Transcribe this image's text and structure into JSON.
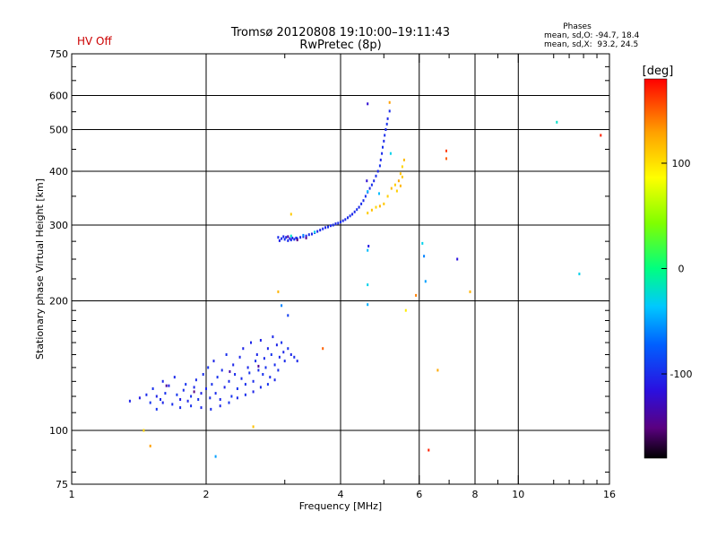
{
  "chart_data": {
    "type": "scatter",
    "title": "Tromsø 20120808 19:10:00–19:11:43",
    "subtitle": "RwPretec (8p)",
    "status_label": "HV Off",
    "status_color": "#cc0000",
    "stats": {
      "heading": "Phases",
      "line_o": "mean, sd,O: -94.7, 18.4",
      "line_x": "mean, sd,X:  93.2, 24.5"
    },
    "xlabel": "Frequency [MHz]",
    "ylabel": "Stationary phase Virtual Height [km]",
    "x_scale": "log",
    "y_scale": "log",
    "xlim": [
      1,
      16
    ],
    "ylim": [
      75,
      750
    ],
    "x_major_ticks": [
      1,
      2,
      4,
      6,
      8,
      10,
      16
    ],
    "x_major_labels": [
      "1",
      "2",
      "4",
      "6",
      "8",
      "10",
      "16"
    ],
    "x_minor_ticks": [
      3,
      5,
      7,
      9,
      12,
      13,
      14,
      15
    ],
    "y_major_ticks": [
      75,
      100,
      200,
      300,
      400,
      500,
      600,
      750
    ],
    "y_major_labels": [
      "75",
      "100",
      "200",
      "300",
      "400",
      "500",
      "600",
      "750"
    ],
    "y_minor_ticks": [
      80,
      90,
      110,
      120,
      130,
      140,
      150,
      160,
      170,
      180,
      190,
      225,
      250,
      275,
      350,
      450,
      550,
      650,
      700
    ],
    "grid_x": [
      2,
      4,
      6,
      8,
      10
    ],
    "grid_y": [
      100,
      200,
      300,
      400,
      500,
      600
    ],
    "colorbar": {
      "label": "[deg]",
      "min": -180,
      "max": 180,
      "ticks": [
        100,
        0,
        -100
      ],
      "tick_labels": [
        "100",
        "0",
        "-100"
      ]
    },
    "points": [
      [
        1.35,
        117,
        -105
      ],
      [
        1.42,
        119,
        -110
      ],
      [
        1.47,
        121,
        -100
      ],
      [
        1.5,
        116,
        -95
      ],
      [
        1.52,
        125,
        -98
      ],
      [
        1.55,
        120,
        -105
      ],
      [
        1.58,
        118,
        -100
      ],
      [
        1.6,
        130,
        -102
      ],
      [
        1.62,
        122,
        -97
      ],
      [
        1.65,
        127,
        -106
      ],
      [
        1.68,
        115,
        -99
      ],
      [
        1.7,
        133,
        -101
      ],
      [
        1.72,
        121,
        -95
      ],
      [
        1.75,
        118,
        -108
      ],
      [
        1.78,
        124,
        -100
      ],
      [
        1.8,
        128,
        -96
      ],
      [
        1.82,
        117,
        -104
      ],
      [
        1.85,
        120,
        -98
      ],
      [
        1.88,
        126,
        -102
      ],
      [
        1.9,
        131,
        -100
      ],
      [
        1.92,
        118,
        -97
      ],
      [
        1.95,
        122,
        -105
      ],
      [
        1.97,
        135,
        -99
      ],
      [
        2.0,
        125,
        -103
      ],
      [
        2.02,
        140,
        -96
      ],
      [
        2.04,
        119,
        -101
      ],
      [
        2.06,
        128,
        -98
      ],
      [
        2.08,
        145,
        -104
      ],
      [
        2.1,
        122,
        -100
      ],
      [
        2.12,
        133,
        -97
      ],
      [
        2.15,
        118,
        -102
      ],
      [
        2.17,
        138,
        -99
      ],
      [
        2.2,
        126,
        -105
      ],
      [
        2.22,
        150,
        -98
      ],
      [
        2.25,
        130,
        -101
      ],
      [
        2.28,
        120,
        -96
      ],
      [
        2.3,
        142,
        -103
      ],
      [
        2.32,
        135,
        -100
      ],
      [
        2.35,
        125,
        -97
      ],
      [
        2.38,
        148,
        -102
      ],
      [
        2.4,
        132,
        -99
      ],
      [
        2.42,
        155,
        -104
      ],
      [
        2.45,
        128,
        -98
      ],
      [
        2.48,
        140,
        -101
      ],
      [
        2.5,
        136,
        -96
      ],
      [
        2.52,
        160,
        -103
      ],
      [
        2.55,
        130,
        -100
      ],
      [
        2.58,
        145,
        -97
      ],
      [
        2.6,
        150,
        -102
      ],
      [
        2.62,
        138,
        -99
      ],
      [
        2.65,
        162,
        -105
      ],
      [
        2.68,
        135,
        -98
      ],
      [
        2.7,
        147,
        -101
      ],
      [
        2.72,
        140,
        -97
      ],
      [
        2.75,
        155,
        -103
      ],
      [
        2.78,
        133,
        -100
      ],
      [
        2.8,
        150,
        -96
      ],
      [
        2.82,
        165,
        -102
      ],
      [
        2.85,
        142,
        -99
      ],
      [
        2.88,
        158,
        -104
      ],
      [
        2.9,
        138,
        -98
      ],
      [
        2.92,
        148,
        -101
      ],
      [
        2.95,
        160,
        -97
      ],
      [
        2.98,
        152,
        -103
      ],
      [
        3.0,
        145,
        -100
      ],
      [
        3.05,
        155,
        -98
      ],
      [
        3.1,
        150,
        -102
      ],
      [
        3.15,
        148,
        -99
      ],
      [
        3.2,
        145,
        -101
      ],
      [
        1.55,
        112,
        -96
      ],
      [
        1.6,
        116,
        -104
      ],
      [
        1.75,
        113,
        -100
      ],
      [
        1.85,
        114,
        -98
      ],
      [
        1.95,
        113,
        -102
      ],
      [
        2.05,
        112,
        -99
      ],
      [
        2.15,
        114,
        -103
      ],
      [
        2.25,
        116,
        -97
      ],
      [
        2.35,
        119,
        -101
      ],
      [
        2.45,
        121,
        -98
      ],
      [
        2.55,
        123,
        -104
      ],
      [
        2.65,
        126,
        -100
      ],
      [
        2.75,
        128,
        -96
      ],
      [
        2.85,
        131,
        -102
      ],
      [
        1.63,
        127,
        -140
      ],
      [
        1.88,
        123,
        -150
      ],
      [
        2.26,
        137,
        -135
      ],
      [
        2.62,
        141,
        -145
      ],
      [
        2.9,
        281,
        -100
      ],
      [
        2.92,
        276,
        -105
      ],
      [
        2.95,
        279,
        -98
      ],
      [
        2.98,
        282,
        -102
      ],
      [
        3.0,
        278,
        -96
      ],
      [
        3.02,
        281,
        -104
      ],
      [
        3.05,
        276,
        -100
      ],
      [
        3.08,
        279,
        -108
      ],
      [
        3.1,
        277,
        -97
      ],
      [
        3.12,
        280,
        -103
      ],
      [
        3.15,
        278,
        -99
      ],
      [
        3.18,
        280,
        -101
      ],
      [
        3.2,
        279,
        -95
      ],
      [
        3.25,
        281,
        -102
      ],
      [
        3.3,
        282,
        -100
      ],
      [
        3.35,
        283,
        -104
      ],
      [
        3.4,
        285,
        -98
      ],
      [
        3.45,
        286,
        -101
      ],
      [
        3.5,
        288,
        -97
      ],
      [
        3.55,
        290,
        -103
      ],
      [
        3.6,
        292,
        -100
      ],
      [
        3.65,
        294,
        -99
      ],
      [
        3.7,
        296,
        -102
      ],
      [
        3.75,
        297,
        -98
      ],
      [
        3.8,
        299,
        -101
      ],
      [
        3.85,
        300,
        -96
      ],
      [
        3.9,
        302,
        -103
      ],
      [
        3.95,
        303,
        -100
      ],
      [
        4.0,
        305,
        -98
      ],
      [
        4.05,
        307,
        -102
      ],
      [
        4.1,
        309,
        -99
      ],
      [
        4.15,
        312,
        -101
      ],
      [
        4.2,
        315,
        -97
      ],
      [
        4.25,
        318,
        -103
      ],
      [
        4.3,
        322,
        -100
      ],
      [
        4.35,
        326,
        -98
      ],
      [
        4.4,
        330,
        -102
      ],
      [
        4.45,
        336,
        -99
      ],
      [
        4.5,
        342,
        -101
      ],
      [
        4.55,
        350,
        -97
      ],
      [
        4.6,
        358,
        -103
      ],
      [
        4.65,
        365,
        -100
      ],
      [
        4.7,
        372,
        -98
      ],
      [
        4.75,
        380,
        -102
      ],
      [
        4.8,
        390,
        -99
      ],
      [
        4.85,
        400,
        -101
      ],
      [
        4.9,
        412,
        -97
      ],
      [
        4.92,
        425,
        -103
      ],
      [
        4.95,
        440,
        -100
      ],
      [
        4.97,
        455,
        -98
      ],
      [
        5.0,
        470,
        -102
      ],
      [
        5.02,
        485,
        -99
      ],
      [
        5.05,
        500,
        -101
      ],
      [
        5.08,
        515,
        -97
      ],
      [
        5.1,
        530,
        -103
      ],
      [
        5.15,
        552,
        -100
      ],
      [
        3.05,
        282,
        -140
      ],
      [
        3.2,
        277,
        -150
      ],
      [
        3.35,
        280,
        -145
      ],
      [
        3.1,
        283,
        -20
      ],
      [
        3.3,
        284,
        -60
      ],
      [
        3.5,
        289,
        -30
      ],
      [
        4.6,
        359,
        -40
      ],
      [
        4.6,
        320,
        110
      ],
      [
        4.7,
        325,
        115
      ],
      [
        4.8,
        330,
        105
      ],
      [
        4.9,
        332,
        120
      ],
      [
        5.0,
        336,
        112
      ],
      [
        5.1,
        350,
        108
      ],
      [
        5.2,
        365,
        118
      ],
      [
        5.3,
        372,
        110
      ],
      [
        5.4,
        380,
        125
      ],
      [
        5.45,
        395,
        114
      ],
      [
        5.5,
        410,
        106
      ],
      [
        5.55,
        425,
        118
      ],
      [
        5.5,
        388,
        112
      ],
      [
        5.45,
        370,
        120
      ],
      [
        5.35,
        360,
        108
      ],
      [
        5.15,
        578,
        130
      ],
      [
        2.9,
        210,
        120
      ],
      [
        3.1,
        318,
        110
      ],
      [
        1.45,
        100,
        105
      ],
      [
        1.5,
        92,
        130
      ],
      [
        2.55,
        102,
        115
      ],
      [
        5.9,
        206,
        140
      ],
      [
        6.6,
        138,
        125
      ],
      [
        6.9,
        446,
        160
      ],
      [
        6.9,
        428,
        150
      ],
      [
        7.8,
        210,
        120
      ],
      [
        3.65,
        155,
        150
      ],
      [
        5.6,
        190,
        95
      ],
      [
        6.3,
        90,
        170
      ],
      [
        15.3,
        485,
        170
      ],
      [
        4.6,
        574,
        -120
      ],
      [
        4.58,
        380,
        -120
      ],
      [
        4.62,
        268,
        -110
      ],
      [
        4.6,
        218,
        -30
      ],
      [
        4.6,
        196,
        -45
      ],
      [
        4.6,
        262,
        -40
      ],
      [
        6.1,
        272,
        -30
      ],
      [
        6.2,
        222,
        -50
      ],
      [
        6.15,
        254,
        -60
      ],
      [
        7.3,
        250,
        -115
      ],
      [
        12.2,
        520,
        -20
      ],
      [
        13.7,
        231,
        -30
      ],
      [
        2.1,
        87,
        -50
      ],
      [
        2.95,
        195,
        -60
      ],
      [
        3.05,
        185,
        -90
      ],
      [
        4.88,
        355,
        -40
      ],
      [
        5.18,
        440,
        -30
      ]
    ]
  }
}
